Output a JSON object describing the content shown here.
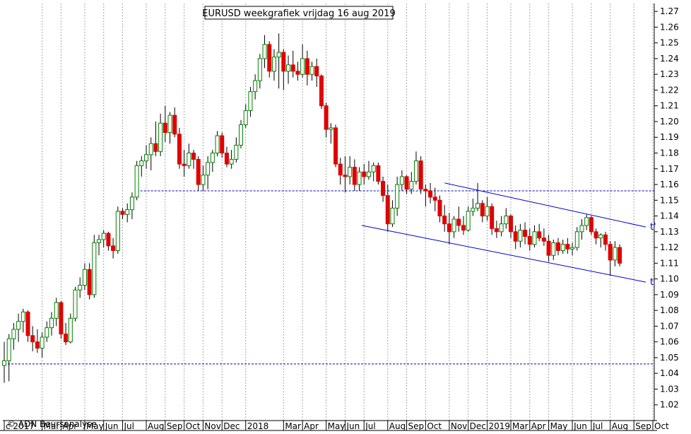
{
  "chart_data": {
    "type": "candlestick",
    "title": "EURUSD weekgrafiek vrijdag 16 aug 2019",
    "credit": "© ADN Beursanalyse",
    "xlabel": "",
    "ylabel": "",
    "ylim": [
      1.01,
      1.275
    ],
    "y_ticks": [
      "1.02",
      "1.03",
      "1.04",
      "1.05",
      "1.06",
      "1.07",
      "1.08",
      "1.09",
      "1.10",
      "1.11",
      "1.12",
      "1.13",
      "1.14",
      "1.15",
      "1.16",
      "1.17",
      "1.18",
      "1.19",
      "1.20",
      "1.21",
      "1.22",
      "1.23",
      "1.24",
      "1.25",
      "1.26",
      "1.27"
    ],
    "x_range_weeks": [
      0,
      137
    ],
    "month_ticks": [
      {
        "label": "c 2017",
        "week": 0
      },
      {
        "label": "Mar",
        "week": 8
      },
      {
        "label": "Apr",
        "week": 12
      },
      {
        "label": "May",
        "week": 17
      },
      {
        "label": "Jun",
        "week": 21
      },
      {
        "label": "Jul",
        "week": 25
      },
      {
        "label": "Aug",
        "week": 30
      },
      {
        "label": "Sep",
        "week": 34
      },
      {
        "label": "Oct",
        "week": 38
      },
      {
        "label": "Nov",
        "week": 42
      },
      {
        "label": "Dec",
        "week": 46
      },
      {
        "label": "2018",
        "week": 51
      },
      {
        "label": "Mar",
        "week": 59
      },
      {
        "label": "Apr",
        "week": 63
      },
      {
        "label": "May",
        "week": 68
      },
      {
        "label": "Jun",
        "week": 72
      },
      {
        "label": "Jul",
        "week": 76
      },
      {
        "label": "Aug",
        "week": 81
      },
      {
        "label": "Sep",
        "week": 85
      },
      {
        "label": "Oct",
        "week": 89
      },
      {
        "label": "Nov",
        "week": 94
      },
      {
        "label": "Dec",
        "week": 98
      },
      {
        "label": "2019",
        "week": 102
      },
      {
        "label": "Mar",
        "week": 107
      },
      {
        "label": "Apr",
        "week": 111
      },
      {
        "label": "May",
        "week": 115
      },
      {
        "label": "Jun",
        "week": 120
      },
      {
        "label": "Jul",
        "week": 124
      },
      {
        "label": "Aug",
        "week": 128
      },
      {
        "label": "Sep",
        "week": 133
      },
      {
        "label": "Oct",
        "week": 137
      }
    ],
    "grid": true,
    "colors": {
      "up": "#008000",
      "down": "#e00000",
      "wick": "#000000",
      "lines": "#0000cc"
    },
    "horizontal_lines": [
      {
        "y": 1.046,
        "from_week": 0,
        "to_week": 137
      },
      {
        "y": 1.156,
        "from_week": 28,
        "to_week": 137
      }
    ],
    "trendlines": [
      {
        "label": "t'",
        "x1": 93,
        "y1": 1.161,
        "x2": 135.5,
        "y2": 1.133
      },
      {
        "label": "t",
        "x1": 75.5,
        "y1": 1.134,
        "x2": 135.5,
        "y2": 1.098
      }
    ],
    "candles": [
      {
        "o": 1.045,
        "h": 1.06,
        "l": 1.034,
        "c": 1.048
      },
      {
        "o": 1.048,
        "h": 1.065,
        "l": 1.035,
        "c": 1.062
      },
      {
        "o": 1.062,
        "h": 1.072,
        "l": 1.055,
        "c": 1.068
      },
      {
        "o": 1.068,
        "h": 1.078,
        "l": 1.06,
        "c": 1.073
      },
      {
        "o": 1.073,
        "h": 1.081,
        "l": 1.066,
        "c": 1.079
      },
      {
        "o": 1.079,
        "h": 1.08,
        "l": 1.06,
        "c": 1.064
      },
      {
        "o": 1.064,
        "h": 1.07,
        "l": 1.054,
        "c": 1.06
      },
      {
        "o": 1.06,
        "h": 1.068,
        "l": 1.053,
        "c": 1.056
      },
      {
        "o": 1.056,
        "h": 1.066,
        "l": 1.05,
        "c": 1.063
      },
      {
        "o": 1.063,
        "h": 1.073,
        "l": 1.06,
        "c": 1.069
      },
      {
        "o": 1.069,
        "h": 1.079,
        "l": 1.064,
        "c": 1.075
      },
      {
        "o": 1.075,
        "h": 1.088,
        "l": 1.07,
        "c": 1.085
      },
      {
        "o": 1.085,
        "h": 1.086,
        "l": 1.062,
        "c": 1.065
      },
      {
        "o": 1.065,
        "h": 1.072,
        "l": 1.058,
        "c": 1.06
      },
      {
        "o": 1.06,
        "h": 1.078,
        "l": 1.059,
        "c": 1.075
      },
      {
        "o": 1.075,
        "h": 1.095,
        "l": 1.073,
        "c": 1.093
      },
      {
        "o": 1.093,
        "h": 1.101,
        "l": 1.088,
        "c": 1.096
      },
      {
        "o": 1.096,
        "h": 1.11,
        "l": 1.093,
        "c": 1.106
      },
      {
        "o": 1.106,
        "h": 1.11,
        "l": 1.087,
        "c": 1.09
      },
      {
        "o": 1.09,
        "h": 1.128,
        "l": 1.088,
        "c": 1.123
      },
      {
        "o": 1.123,
        "h": 1.128,
        "l": 1.115,
        "c": 1.125
      },
      {
        "o": 1.125,
        "h": 1.131,
        "l": 1.12,
        "c": 1.129
      },
      {
        "o": 1.129,
        "h": 1.13,
        "l": 1.118,
        "c": 1.121
      },
      {
        "o": 1.121,
        "h": 1.126,
        "l": 1.113,
        "c": 1.118
      },
      {
        "o": 1.118,
        "h": 1.146,
        "l": 1.116,
        "c": 1.143
      },
      {
        "o": 1.143,
        "h": 1.145,
        "l": 1.138,
        "c": 1.141
      },
      {
        "o": 1.141,
        "h": 1.148,
        "l": 1.136,
        "c": 1.144
      },
      {
        "o": 1.144,
        "h": 1.155,
        "l": 1.138,
        "c": 1.152
      },
      {
        "o": 1.152,
        "h": 1.175,
        "l": 1.15,
        "c": 1.172
      },
      {
        "o": 1.172,
        "h": 1.178,
        "l": 1.165,
        "c": 1.175
      },
      {
        "o": 1.175,
        "h": 1.185,
        "l": 1.17,
        "c": 1.179
      },
      {
        "o": 1.179,
        "h": 1.19,
        "l": 1.169,
        "c": 1.186
      },
      {
        "o": 1.186,
        "h": 1.2,
        "l": 1.178,
        "c": 1.181
      },
      {
        "o": 1.181,
        "h": 1.205,
        "l": 1.178,
        "c": 1.199
      },
      {
        "o": 1.199,
        "h": 1.21,
        "l": 1.187,
        "c": 1.193
      },
      {
        "o": 1.193,
        "h": 1.206,
        "l": 1.186,
        "c": 1.204
      },
      {
        "o": 1.204,
        "h": 1.209,
        "l": 1.19,
        "c": 1.192
      },
      {
        "o": 1.192,
        "h": 1.196,
        "l": 1.17,
        "c": 1.173
      },
      {
        "o": 1.173,
        "h": 1.182,
        "l": 1.165,
        "c": 1.172
      },
      {
        "o": 1.172,
        "h": 1.186,
        "l": 1.17,
        "c": 1.18
      },
      {
        "o": 1.18,
        "h": 1.182,
        "l": 1.17,
        "c": 1.176
      },
      {
        "o": 1.176,
        "h": 1.178,
        "l": 1.156,
        "c": 1.16
      },
      {
        "o": 1.16,
        "h": 1.172,
        "l": 1.156,
        "c": 1.166
      },
      {
        "o": 1.166,
        "h": 1.178,
        "l": 1.157,
        "c": 1.174
      },
      {
        "o": 1.174,
        "h": 1.182,
        "l": 1.168,
        "c": 1.18
      },
      {
        "o": 1.18,
        "h": 1.194,
        "l": 1.178,
        "c": 1.191
      },
      {
        "o": 1.191,
        "h": 1.193,
        "l": 1.177,
        "c": 1.18
      },
      {
        "o": 1.18,
        "h": 1.184,
        "l": 1.171,
        "c": 1.173
      },
      {
        "o": 1.173,
        "h": 1.182,
        "l": 1.17,
        "c": 1.176
      },
      {
        "o": 1.176,
        "h": 1.19,
        "l": 1.174,
        "c": 1.185
      },
      {
        "o": 1.185,
        "h": 1.201,
        "l": 1.183,
        "c": 1.198
      },
      {
        "o": 1.198,
        "h": 1.211,
        "l": 1.196,
        "c": 1.207
      },
      {
        "o": 1.207,
        "h": 1.222,
        "l": 1.203,
        "c": 1.219
      },
      {
        "o": 1.219,
        "h": 1.23,
        "l": 1.214,
        "c": 1.226
      },
      {
        "o": 1.226,
        "h": 1.243,
        "l": 1.221,
        "c": 1.24
      },
      {
        "o": 1.24,
        "h": 1.255,
        "l": 1.234,
        "c": 1.249
      },
      {
        "o": 1.249,
        "h": 1.251,
        "l": 1.228,
        "c": 1.232
      },
      {
        "o": 1.232,
        "h": 1.246,
        "l": 1.226,
        "c": 1.241
      },
      {
        "o": 1.241,
        "h": 1.256,
        "l": 1.221,
        "c": 1.244
      },
      {
        "o": 1.244,
        "h": 1.246,
        "l": 1.22,
        "c": 1.232
      },
      {
        "o": 1.232,
        "h": 1.242,
        "l": 1.224,
        "c": 1.236
      },
      {
        "o": 1.236,
        "h": 1.245,
        "l": 1.228,
        "c": 1.232
      },
      {
        "o": 1.232,
        "h": 1.238,
        "l": 1.226,
        "c": 1.23
      },
      {
        "o": 1.23,
        "h": 1.249,
        "l": 1.228,
        "c": 1.24
      },
      {
        "o": 1.24,
        "h": 1.245,
        "l": 1.223,
        "c": 1.23
      },
      {
        "o": 1.23,
        "h": 1.238,
        "l": 1.226,
        "c": 1.235
      },
      {
        "o": 1.235,
        "h": 1.24,
        "l": 1.222,
        "c": 1.229
      },
      {
        "o": 1.229,
        "h": 1.23,
        "l": 1.208,
        "c": 1.21
      },
      {
        "o": 1.21,
        "h": 1.212,
        "l": 1.19,
        "c": 1.195
      },
      {
        "o": 1.195,
        "h": 1.199,
        "l": 1.186,
        "c": 1.196
      },
      {
        "o": 1.196,
        "h": 1.198,
        "l": 1.171,
        "c": 1.173
      },
      {
        "o": 1.173,
        "h": 1.177,
        "l": 1.16,
        "c": 1.166
      },
      {
        "o": 1.166,
        "h": 1.178,
        "l": 1.155,
        "c": 1.165
      },
      {
        "o": 1.165,
        "h": 1.178,
        "l": 1.16,
        "c": 1.171
      },
      {
        "o": 1.171,
        "h": 1.176,
        "l": 1.156,
        "c": 1.16
      },
      {
        "o": 1.16,
        "h": 1.171,
        "l": 1.156,
        "c": 1.168
      },
      {
        "o": 1.168,
        "h": 1.173,
        "l": 1.16,
        "c": 1.165
      },
      {
        "o": 1.165,
        "h": 1.175,
        "l": 1.163,
        "c": 1.168
      },
      {
        "o": 1.168,
        "h": 1.174,
        "l": 1.162,
        "c": 1.172
      },
      {
        "o": 1.172,
        "h": 1.174,
        "l": 1.16,
        "c": 1.162
      },
      {
        "o": 1.162,
        "h": 1.165,
        "l": 1.149,
        "c": 1.153
      },
      {
        "o": 1.153,
        "h": 1.16,
        "l": 1.13,
        "c": 1.135
      },
      {
        "o": 1.135,
        "h": 1.15,
        "l": 1.133,
        "c": 1.145
      },
      {
        "o": 1.145,
        "h": 1.165,
        "l": 1.14,
        "c": 1.16
      },
      {
        "o": 1.16,
        "h": 1.169,
        "l": 1.156,
        "c": 1.165
      },
      {
        "o": 1.165,
        "h": 1.166,
        "l": 1.154,
        "c": 1.157
      },
      {
        "o": 1.157,
        "h": 1.168,
        "l": 1.154,
        "c": 1.162
      },
      {
        "o": 1.162,
        "h": 1.181,
        "l": 1.16,
        "c": 1.175
      },
      {
        "o": 1.175,
        "h": 1.178,
        "l": 1.154,
        "c": 1.157
      },
      {
        "o": 1.157,
        "h": 1.16,
        "l": 1.146,
        "c": 1.156
      },
      {
        "o": 1.156,
        "h": 1.161,
        "l": 1.148,
        "c": 1.152
      },
      {
        "o": 1.152,
        "h": 1.158,
        "l": 1.143,
        "c": 1.15
      },
      {
        "o": 1.15,
        "h": 1.153,
        "l": 1.136,
        "c": 1.14
      },
      {
        "o": 1.14,
        "h": 1.147,
        "l": 1.13,
        "c": 1.135
      },
      {
        "o": 1.135,
        "h": 1.142,
        "l": 1.122,
        "c": 1.13
      },
      {
        "o": 1.13,
        "h": 1.14,
        "l": 1.126,
        "c": 1.138
      },
      {
        "o": 1.138,
        "h": 1.146,
        "l": 1.13,
        "c": 1.134
      },
      {
        "o": 1.134,
        "h": 1.14,
        "l": 1.128,
        "c": 1.131
      },
      {
        "o": 1.131,
        "h": 1.146,
        "l": 1.13,
        "c": 1.143
      },
      {
        "o": 1.143,
        "h": 1.151,
        "l": 1.14,
        "c": 1.145
      },
      {
        "o": 1.145,
        "h": 1.161,
        "l": 1.143,
        "c": 1.148
      },
      {
        "o": 1.148,
        "h": 1.15,
        "l": 1.136,
        "c": 1.14
      },
      {
        "o": 1.14,
        "h": 1.152,
        "l": 1.137,
        "c": 1.146
      },
      {
        "o": 1.146,
        "h": 1.148,
        "l": 1.128,
        "c": 1.132
      },
      {
        "o": 1.132,
        "h": 1.137,
        "l": 1.126,
        "c": 1.13
      },
      {
        "o": 1.13,
        "h": 1.14,
        "l": 1.127,
        "c": 1.135
      },
      {
        "o": 1.135,
        "h": 1.145,
        "l": 1.132,
        "c": 1.14
      },
      {
        "o": 1.14,
        "h": 1.141,
        "l": 1.126,
        "c": 1.13
      },
      {
        "o": 1.13,
        "h": 1.134,
        "l": 1.119,
        "c": 1.124
      },
      {
        "o": 1.124,
        "h": 1.135,
        "l": 1.12,
        "c": 1.131
      },
      {
        "o": 1.131,
        "h": 1.136,
        "l": 1.122,
        "c": 1.127
      },
      {
        "o": 1.127,
        "h": 1.132,
        "l": 1.118,
        "c": 1.122
      },
      {
        "o": 1.122,
        "h": 1.134,
        "l": 1.12,
        "c": 1.13
      },
      {
        "o": 1.13,
        "h": 1.135,
        "l": 1.124,
        "c": 1.126
      },
      {
        "o": 1.126,
        "h": 1.132,
        "l": 1.121,
        "c": 1.124
      },
      {
        "o": 1.124,
        "h": 1.128,
        "l": 1.111,
        "c": 1.115
      },
      {
        "o": 1.115,
        "h": 1.125,
        "l": 1.112,
        "c": 1.123
      },
      {
        "o": 1.123,
        "h": 1.126,
        "l": 1.115,
        "c": 1.118
      },
      {
        "o": 1.118,
        "h": 1.125,
        "l": 1.116,
        "c": 1.122
      },
      {
        "o": 1.122,
        "h": 1.126,
        "l": 1.116,
        "c": 1.119
      },
      {
        "o": 1.119,
        "h": 1.123,
        "l": 1.115,
        "c": 1.12
      },
      {
        "o": 1.12,
        "h": 1.133,
        "l": 1.118,
        "c": 1.13
      },
      {
        "o": 1.13,
        "h": 1.138,
        "l": 1.125,
        "c": 1.134
      },
      {
        "o": 1.134,
        "h": 1.141,
        "l": 1.131,
        "c": 1.139
      },
      {
        "o": 1.139,
        "h": 1.14,
        "l": 1.128,
        "c": 1.13
      },
      {
        "o": 1.13,
        "h": 1.132,
        "l": 1.122,
        "c": 1.126
      },
      {
        "o": 1.126,
        "h": 1.129,
        "l": 1.12,
        "c": 1.128
      },
      {
        "o": 1.128,
        "h": 1.13,
        "l": 1.118,
        "c": 1.122
      },
      {
        "o": 1.122,
        "h": 1.124,
        "l": 1.102,
        "c": 1.112
      },
      {
        "o": 1.112,
        "h": 1.124,
        "l": 1.108,
        "c": 1.12
      },
      {
        "o": 1.12,
        "h": 1.122,
        "l": 1.108,
        "c": 1.11
      }
    ]
  }
}
